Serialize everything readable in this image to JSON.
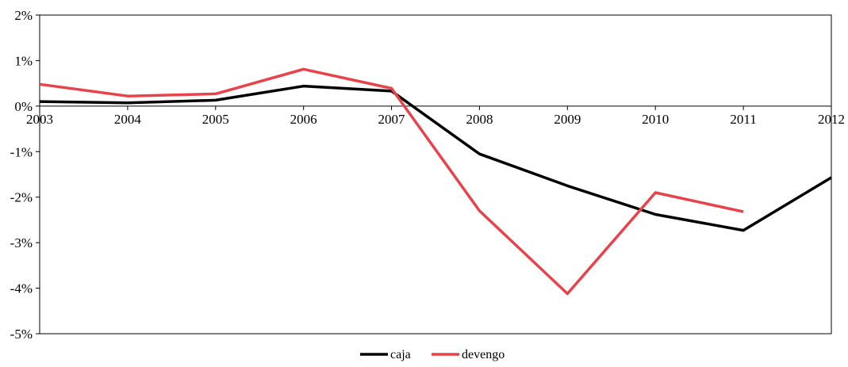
{
  "chart_data": {
    "type": "line",
    "title": "",
    "xlabel": "",
    "ylabel": "",
    "categories": [
      "2003",
      "2004",
      "2005",
      "2006",
      "2007",
      "2008",
      "2009",
      "2010",
      "2011",
      "2012"
    ],
    "y_ticks": [
      "2%",
      "1%",
      "0%",
      "-1%",
      "-2%",
      "-3%",
      "-4%",
      "-5%"
    ],
    "y_tick_values": [
      2,
      1,
      0,
      -1,
      -2,
      -3,
      -4,
      -5
    ],
    "ylim": [
      -5,
      2
    ],
    "grid": false,
    "legend_position": "bottom",
    "series": [
      {
        "name": "caja",
        "color": "#000000",
        "values": [
          0.1,
          0.07,
          0.13,
          0.44,
          0.33,
          -1.05,
          -1.75,
          -2.38,
          -2.73,
          -1.57
        ]
      },
      {
        "name": "devengo",
        "color": "#e8434b",
        "values": [
          0.48,
          0.22,
          0.27,
          0.81,
          0.39,
          -2.3,
          -4.12,
          -1.9,
          -2.32,
          null
        ]
      }
    ]
  }
}
